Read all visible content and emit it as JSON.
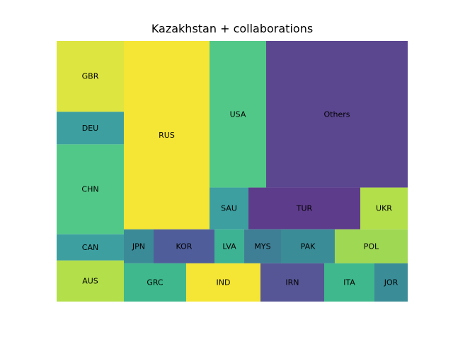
{
  "chart_data": {
    "type": "treemap",
    "title": "Kazakhstan + collaborations",
    "xlim": [
      0,
      100
    ],
    "ylim": [
      0,
      100
    ],
    "cells": [
      {
        "label": "GBR",
        "x": 0.0,
        "y": 72.83,
        "w": 19.15,
        "h": 27.17,
        "color": "#dde540"
      },
      {
        "label": "DEU",
        "x": 0.0,
        "y": 60.33,
        "w": 19.15,
        "h": 12.5,
        "color": "#3d9fa0"
      },
      {
        "label": "CHN",
        "x": 0.0,
        "y": 25.82,
        "w": 19.15,
        "h": 34.51,
        "color": "#52c888"
      },
      {
        "label": "CAN",
        "x": 0.0,
        "y": 15.76,
        "w": 19.15,
        "h": 10.06,
        "color": "#3d9fa0"
      },
      {
        "label": "AUS",
        "x": 0.0,
        "y": 0.0,
        "w": 19.15,
        "h": 15.76,
        "color": "#b2df4a"
      },
      {
        "label": "RUS",
        "x": 19.15,
        "y": 27.72,
        "w": 24.4,
        "h": 72.28,
        "color": "#f5e534"
      },
      {
        "label": "USA",
        "x": 43.55,
        "y": 43.75,
        "w": 16.13,
        "h": 56.25,
        "color": "#52c888"
      },
      {
        "label": "Others",
        "x": 59.68,
        "y": 43.75,
        "w": 40.32,
        "h": 56.25,
        "color": "#5b4690"
      },
      {
        "label": "SAU",
        "x": 43.55,
        "y": 27.72,
        "w": 11.09,
        "h": 16.03,
        "color": "#3d9fa0"
      },
      {
        "label": "TUR",
        "x": 54.64,
        "y": 27.72,
        "w": 31.85,
        "h": 16.03,
        "color": "#5e3c8c"
      },
      {
        "label": "UKR",
        "x": 86.49,
        "y": 27.72,
        "w": 13.51,
        "h": 16.03,
        "color": "#b2df4a"
      },
      {
        "label": "JPN",
        "x": 19.15,
        "y": 14.67,
        "w": 8.47,
        "h": 13.05,
        "color": "#3b8a98"
      },
      {
        "label": "KOR",
        "x": 27.62,
        "y": 14.67,
        "w": 17.34,
        "h": 13.05,
        "color": "#4f5e9a"
      },
      {
        "label": "LVA",
        "x": 44.96,
        "y": 14.67,
        "w": 8.47,
        "h": 13.05,
        "color": "#3eb394"
      },
      {
        "label": "MYS",
        "x": 53.43,
        "y": 14.67,
        "w": 10.48,
        "h": 13.05,
        "color": "#3f7f96"
      },
      {
        "label": "PAK",
        "x": 63.91,
        "y": 14.67,
        "w": 15.32,
        "h": 13.05,
        "color": "#3a8c97"
      },
      {
        "label": "POL",
        "x": 79.23,
        "y": 14.67,
        "w": 20.77,
        "h": 13.05,
        "color": "#9fd853"
      },
      {
        "label": "GRC",
        "x": 19.15,
        "y": 0.0,
        "w": 17.74,
        "h": 14.67,
        "color": "#3eb88c"
      },
      {
        "label": "IND",
        "x": 36.89,
        "y": 0.0,
        "w": 21.17,
        "h": 14.67,
        "color": "#f5e534"
      },
      {
        "label": "IRN",
        "x": 58.06,
        "y": 0.0,
        "w": 18.15,
        "h": 14.67,
        "color": "#565595"
      },
      {
        "label": "ITA",
        "x": 76.21,
        "y": 0.0,
        "w": 14.31,
        "h": 14.67,
        "color": "#3eb88c"
      },
      {
        "label": "JOR",
        "x": 90.52,
        "y": 0.0,
        "w": 9.48,
        "h": 14.67,
        "color": "#3a8c97"
      }
    ]
  }
}
